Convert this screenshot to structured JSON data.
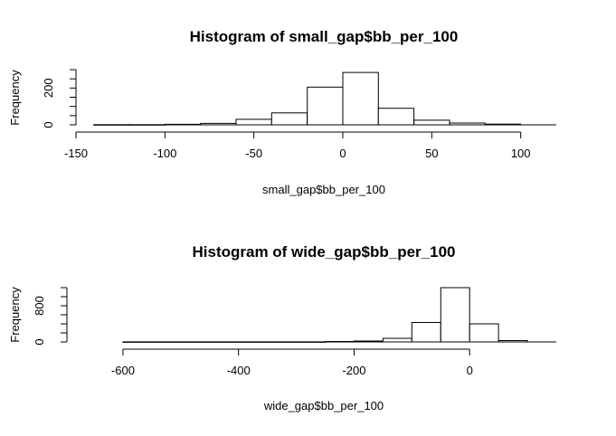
{
  "chart_data": [
    {
      "type": "bar",
      "title": "Histogram of small_gap$bb_per_100",
      "xlabel": "small_gap$bb_per_100",
      "ylabel": "Frequency",
      "xlim": [
        -150,
        120
      ],
      "ylim": [
        0,
        300
      ],
      "x_ticks": [
        -150,
        -100,
        -50,
        0,
        50,
        100
      ],
      "y_ticks": [
        0,
        200
      ],
      "y_minor_ticks": [
        0,
        50,
        100,
        150,
        200,
        250,
        300
      ],
      "bin_width": 20,
      "bins": [
        {
          "start": -140,
          "end": -120,
          "count": 1
        },
        {
          "start": -120,
          "end": -100,
          "count": 1
        },
        {
          "start": -100,
          "end": -80,
          "count": 3
        },
        {
          "start": -80,
          "end": -60,
          "count": 8
        },
        {
          "start": -60,
          "end": -40,
          "count": 30
        },
        {
          "start": -40,
          "end": -20,
          "count": 65
        },
        {
          "start": -20,
          "end": 0,
          "count": 205
        },
        {
          "start": 0,
          "end": 20,
          "count": 285
        },
        {
          "start": 20,
          "end": 40,
          "count": 90
        },
        {
          "start": 40,
          "end": 60,
          "count": 25
        },
        {
          "start": 60,
          "end": 80,
          "count": 10
        },
        {
          "start": 80,
          "end": 100,
          "count": 4
        }
      ]
    },
    {
      "type": "bar",
      "title": "Histogram of wide_gap$bb_per_100",
      "xlabel": "wide_gap$bb_per_100",
      "ylabel": "Frequency",
      "xlim": [
        -650,
        150
      ],
      "ylim": [
        0,
        1200
      ],
      "x_ticks": [
        -600,
        -400,
        -200,
        0
      ],
      "y_ticks": [
        0,
        800
      ],
      "y_minor_ticks": [
        0,
        200,
        400,
        600,
        800,
        1000,
        1200
      ],
      "bin_width": 50,
      "bins": [
        {
          "start": -600,
          "end": -550,
          "count": 2
        },
        {
          "start": -550,
          "end": -500,
          "count": 2
        },
        {
          "start": -500,
          "end": -450,
          "count": 2
        },
        {
          "start": -450,
          "end": -400,
          "count": 2
        },
        {
          "start": -400,
          "end": -350,
          "count": 2
        },
        {
          "start": -350,
          "end": -300,
          "count": 2
        },
        {
          "start": -300,
          "end": -250,
          "count": 2
        },
        {
          "start": -250,
          "end": -200,
          "count": 10
        },
        {
          "start": -200,
          "end": -150,
          "count": 20
        },
        {
          "start": -150,
          "end": -100,
          "count": 80
        },
        {
          "start": -100,
          "end": -50,
          "count": 430
        },
        {
          "start": -50,
          "end": 0,
          "count": 1200
        },
        {
          "start": 0,
          "end": 50,
          "count": 400
        },
        {
          "start": 50,
          "end": 100,
          "count": 30
        }
      ]
    }
  ]
}
